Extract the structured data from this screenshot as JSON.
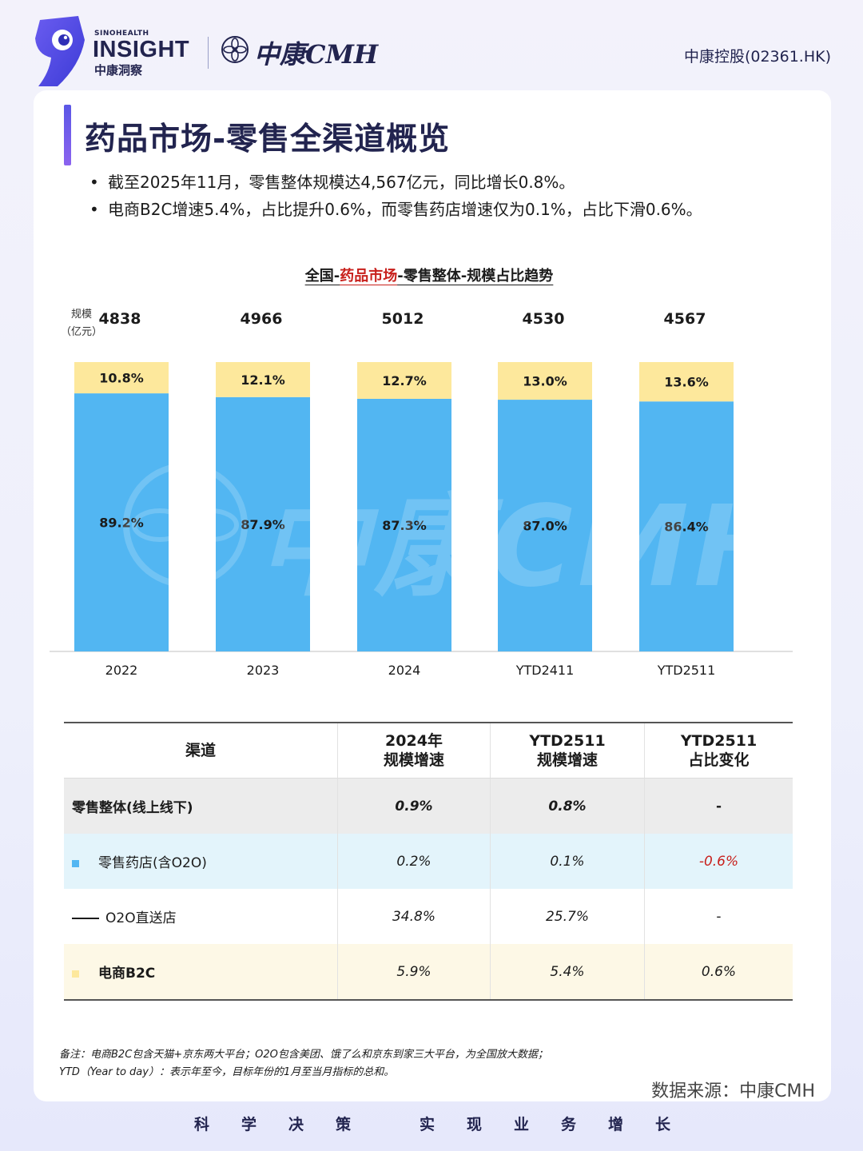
{
  "header": {
    "brand_small": "SINOHEALTH",
    "brand_big": "INSIGHT",
    "brand_cn": "中康洞察",
    "partner_logo_text": "中康CMH",
    "ticker": "中康控股(02361.HK)"
  },
  "page": {
    "title": "药品市场-零售全渠道概览",
    "bullets": [
      "截至2025年11月，零售整体规模达4,567亿元，同比增长0.8%。",
      "电商B2C增速5.4%，占比提升0.6%，而零售药店增速仅为0.1%，占比下滑0.6%。"
    ]
  },
  "chart_title": {
    "part1": "全国-",
    "part2": "药品市场",
    "part3": "-零售整体-规模占比趋势"
  },
  "chart_unit": {
    "line1": "规模",
    "line2": "（亿元）"
  },
  "colors": {
    "pharmacy_blue": "#52b6f2",
    "b2c_yellow": "#fde89c",
    "accent_red": "#c8201c",
    "navy": "#22244f"
  },
  "chart_data": {
    "type": "bar",
    "stacked": "percent",
    "categories": [
      "2022",
      "2023",
      "2024",
      "YTD2411",
      "YTD2511"
    ],
    "totals": [
      4838,
      4966,
      5012,
      4530,
      4567
    ],
    "series": [
      {
        "color": "#52b6f2",
        "values": [
          89.2,
          87.9,
          87.3,
          87.0,
          86.4
        ],
        "labels": [
          "89.2%",
          "87.9%",
          "87.3%",
          "87.0%",
          "86.4%"
        ]
      },
      {
        "color": "#fde89c",
        "values": [
          10.8,
          12.1,
          12.7,
          13.0,
          13.6
        ],
        "labels": [
          "10.8%",
          "12.1%",
          "12.7%",
          "13.0%",
          "13.6%"
        ]
      }
    ],
    "ylim": [
      0,
      100
    ]
  },
  "table": {
    "headers": [
      {
        "line1": "渠道",
        "line2": ""
      },
      {
        "line1": "2024年",
        "line2": "规模增速"
      },
      {
        "line1": "YTD2511",
        "line2": "规模增速"
      },
      {
        "line1": "YTD2511",
        "line2": "占比变化"
      }
    ],
    "rows": [
      {
        "channel": "零售整体(线上线下)",
        "growth_2024": "0.9%",
        "growth_ytd2511": "0.8%",
        "share_change": "-"
      },
      {
        "channel": "零售药店(含O2O)",
        "growth_2024": "0.2%",
        "growth_ytd2511": "0.1%",
        "share_change": "-0.6%"
      },
      {
        "channel": "O2O直送店",
        "growth_2024": "34.8%",
        "growth_ytd2511": "25.7%",
        "share_change": "-"
      },
      {
        "channel": "电商B2C",
        "growth_2024": "5.9%",
        "growth_ytd2511": "5.4%",
        "share_change": "0.6%"
      }
    ]
  },
  "footnote": {
    "line1": "备注：电商B2C包含天猫+京东两大平台；O2O包含美团、饿了么和京东到家三大平台，为全国放大数据；",
    "line2": "YTD（Year to day）：表示年至今，目标年份的1月至当月指标的总和。"
  },
  "source": "数据来源：中康CMH",
  "slogan": [
    "科",
    "学",
    "决",
    "策",
    "实",
    "现",
    "业",
    "务",
    "增",
    "长"
  ]
}
